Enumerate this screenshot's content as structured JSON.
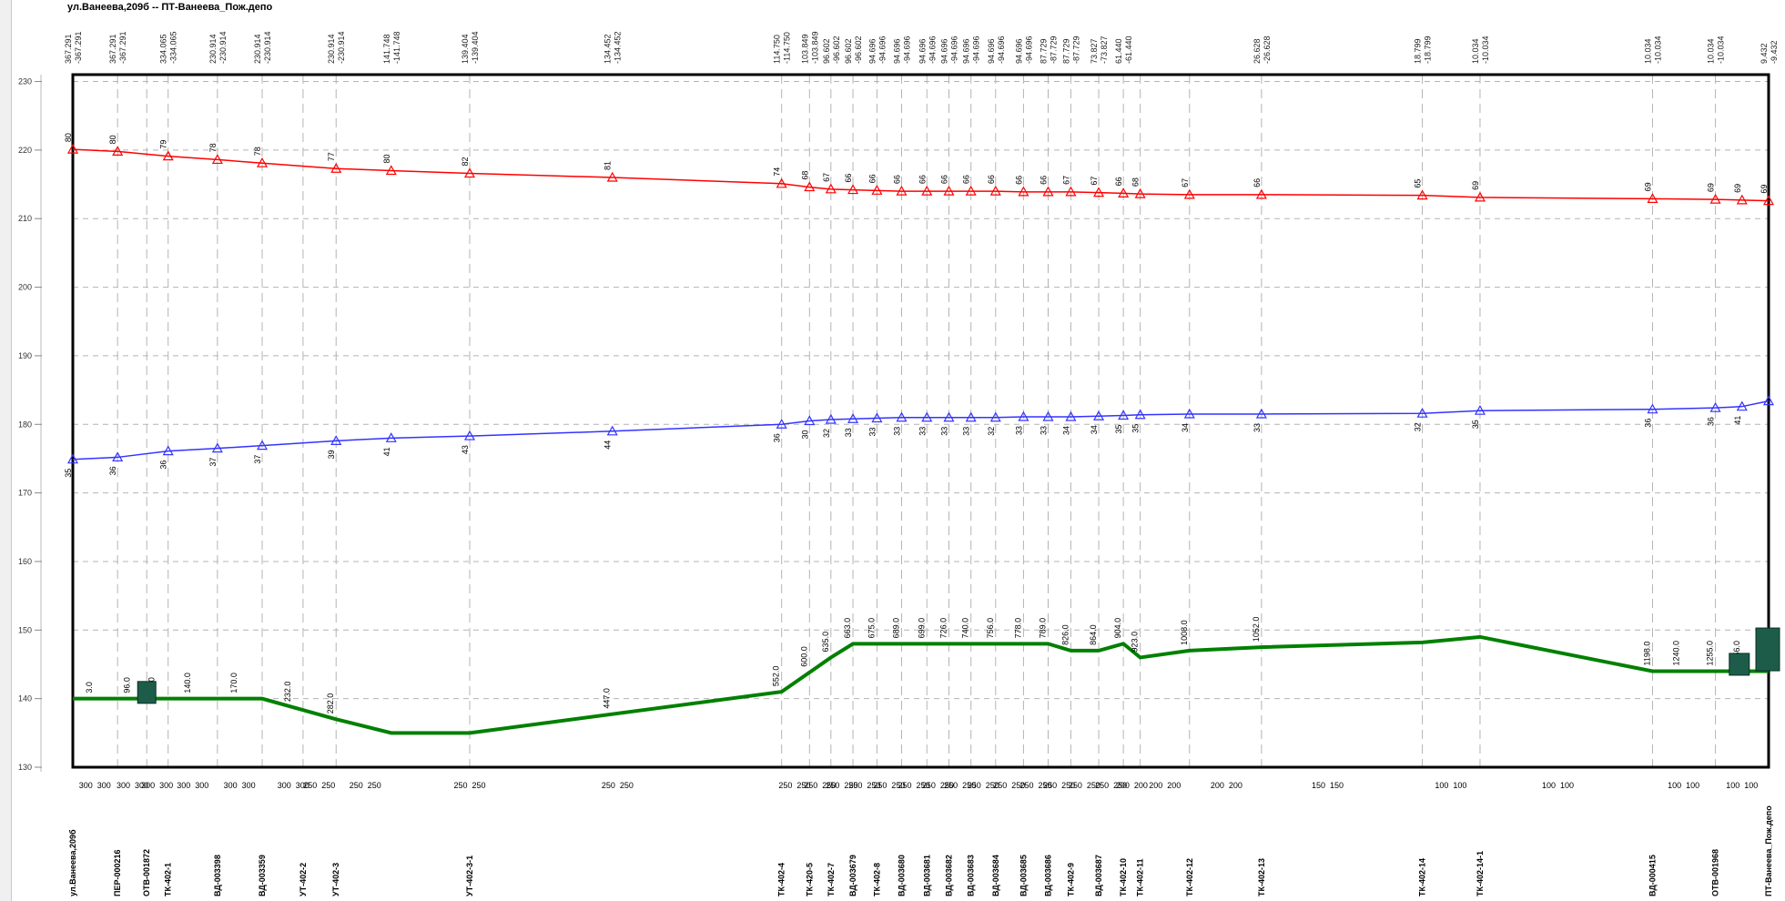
{
  "title": "ул.Ванеева,209б -- ПТ-Ванеева_Пож.депо",
  "colors": {
    "supply": "#ff0000",
    "return": "#3333ff",
    "ground": "#008000",
    "frame": "#000000",
    "grid": "#b4b4b4",
    "block": "#1e5c4a"
  },
  "chart_data": {
    "type": "line",
    "title": "ул.Ванеева,209б -- ПТ-Ванеева_Пож.депо",
    "ylim": [
      130,
      231
    ],
    "yticks": [
      130,
      140,
      150,
      160,
      170,
      180,
      190,
      200,
      210,
      220,
      230
    ],
    "grid": true,
    "x": [
      0,
      69,
      147,
      223,
      292,
      406,
      491,
      612,
      832,
      1093,
      1136,
      1169,
      1203,
      1240,
      1278,
      1317,
      1351,
      1385,
      1423,
      1466,
      1504,
      1539,
      1582,
      1620,
      1646,
      1722,
      1833,
      2081,
      2170,
      2436,
      2533,
      2574,
      2615
    ],
    "nodes": [
      "ул.Ванеева,209б",
      "ПЕР-000216",
      "ОТВ-001872",
      "ТК-402-1",
      "ВД-003398",
      "ВД-003359",
      "УТ-402-2",
      "УТ-402-3",
      "УТ-402-3-1",
      "ТК-402-4",
      "ТК-420-5",
      "ТК-402-7",
      "ВД-003679",
      "ТК-402-8",
      "ВД-003680",
      "ВД-003681",
      "ВД-003682",
      "ВД-003683",
      "ВД-003684",
      "ВД-003685",
      "ВД-003686",
      "ТК-402-9",
      "ВД-003687",
      "ТК-402-10",
      "ТК-402-11",
      "ТК-402-12",
      "ТК-402-13",
      "ТК-402-14",
      "ТК-402-14-1",
      "ВД-000415",
      "ОТВ-001968",
      "ПТ-Ванеева_Пож.депо"
    ],
    "node_x": [
      0,
      69,
      114,
      147,
      223,
      292,
      355,
      406,
      612,
      1093,
      1136,
      1169,
      1203,
      1240,
      1278,
      1317,
      1351,
      1385,
      1423,
      1466,
      1504,
      1539,
      1582,
      1620,
      1646,
      1722,
      1833,
      2081,
      2170,
      2436,
      2533,
      2615
    ],
    "top_labels": [
      [
        "367.291",
        "-367.291"
      ],
      [
        "367.291",
        "-367.291"
      ],
      [
        "334.065",
        "-334.065"
      ],
      [
        "230.914",
        "-230.914"
      ],
      [
        "230.914",
        "-230.914"
      ],
      [
        "230.914",
        "-230.914"
      ],
      [
        "141.748",
        "-141.748"
      ],
      [
        "139.404",
        "-139.404"
      ],
      [
        "134.452",
        "-134.452"
      ],
      [
        "114.750",
        "-114.750"
      ],
      [
        "103.849",
        "-103.849"
      ],
      [
        "96.602",
        "-96.602"
      ],
      [
        "96.602",
        "-96.602"
      ],
      [
        "94.696",
        "-94.696"
      ],
      [
        "94.696",
        "-94.696"
      ],
      [
        "94.696",
        "-94.696"
      ],
      [
        "94.696",
        "-94.696"
      ],
      [
        "94.696",
        "-94.696"
      ],
      [
        "94.696",
        "-94.696"
      ],
      [
        "94.696",
        "-94.696"
      ],
      [
        "87.729",
        "-87.729"
      ],
      [
        "87.729",
        "-87.729"
      ],
      [
        "73.827",
        "-73.827"
      ],
      [
        "61.440",
        "-61.440"
      ],
      [
        "26.628",
        "-26.628"
      ],
      [
        "18.799",
        "-18.799"
      ],
      [
        "10.034",
        "-10.034"
      ],
      [
        "10.034",
        "-10.034"
      ],
      [
        "10.034",
        "-10.034"
      ],
      [
        "9.432",
        "-9.432"
      ]
    ],
    "top_x": [
      0,
      69,
      147,
      223,
      292,
      406,
      491,
      612,
      832,
      1093,
      1136,
      1169,
      1203,
      1240,
      1278,
      1317,
      1351,
      1385,
      1423,
      1466,
      1504,
      1539,
      1582,
      1620,
      1833,
      2081,
      2170,
      2436,
      2533,
      2615
    ],
    "diameters": [
      "300 300",
      "300 300",
      "300 300",
      "300 300",
      "300 300",
      "300 300",
      "250 250",
      "250 250",
      "250 250",
      "250 250",
      "250 250",
      "250 250",
      "250 250",
      "250 250",
      "250 250",
      "250 250",
      "250 250",
      "250 250",
      "250 250",
      "250 250",
      "250 250",
      "250 250",
      "250 250",
      "250 250",
      "200 200",
      "200 200",
      "200 200",
      "150 150",
      "100 100",
      "100 100",
      "100 100",
      "100 100"
    ],
    "diam_x": [
      34,
      92,
      130,
      185,
      257,
      340,
      380,
      451,
      612,
      840,
      1113,
      1152,
      1186,
      1221,
      1259,
      1297,
      1334,
      1368,
      1404,
      1444,
      1485,
      1521,
      1560,
      1601,
      1633,
      1684,
      1779,
      1935,
      2125,
      2290,
      2484,
      2574
    ],
    "series": [
      {
        "name": "supply",
        "values": [
          220.1,
          219.8,
          219.1,
          218.6,
          218.1,
          217.3,
          217.0,
          216.6,
          216.0,
          215.1,
          214.6,
          214.3,
          214.2,
          214.1,
          214.0,
          214.0,
          214.0,
          214.0,
          214.0,
          213.9,
          213.9,
          213.9,
          213.8,
          213.7,
          213.6,
          213.5,
          213.5,
          213.4,
          213.1,
          212.9,
          212.8,
          212.7,
          212.6
        ],
        "labels": [
          "80",
          "80",
          "79",
          "78",
          "78",
          "77",
          "80",
          "82",
          "81",
          "74",
          "68",
          "67",
          "66",
          "66",
          "66",
          "66",
          "66",
          "66",
          "66",
          "66",
          "66",
          "67",
          "67",
          "66",
          "68",
          "67",
          "66",
          "65",
          "69",
          "69",
          "69",
          "69",
          "69"
        ]
      },
      {
        "name": "return",
        "values": [
          174.9,
          175.2,
          176.1,
          176.5,
          176.9,
          177.6,
          178.0,
          178.3,
          179.0,
          180.0,
          180.5,
          180.7,
          180.8,
          180.9,
          181.0,
          181.0,
          181.0,
          181.0,
          181.0,
          181.1,
          181.1,
          181.1,
          181.2,
          181.3,
          181.4,
          181.5,
          181.5,
          181.6,
          182.0,
          182.2,
          182.4,
          182.6,
          183.4
        ],
        "labels": [
          "35",
          "36",
          "36",
          "37",
          "37",
          "39",
          "41",
          "43",
          "44",
          "36",
          "30",
          "32",
          "33",
          "33",
          "33",
          "33",
          "33",
          "33",
          "32",
          "33",
          "33",
          "34",
          "34",
          "35",
          "35",
          "34",
          "33",
          "32",
          "35",
          "36",
          "36",
          "41",
          ""
        ]
      },
      {
        "name": "ground",
        "x": [
          0,
          292,
          406,
          491,
          612,
          1093,
          1169,
          1203,
          1240,
          1278,
          1317,
          1351,
          1385,
          1423,
          1466,
          1504,
          1539,
          1582,
          1620,
          1646,
          1722,
          1833,
          2081,
          2170,
          2436,
          2533,
          2574,
          2615
        ],
        "values": [
          140,
          140,
          137,
          135,
          135,
          141,
          146,
          148,
          148,
          148,
          148,
          148,
          148,
          148,
          148,
          148,
          147,
          147,
          148,
          146,
          147,
          147.5,
          148.2,
          149,
          144,
          144,
          144,
          144
        ],
        "labels": [
          "3.0",
          "96.0",
          "92.0",
          "140.0",
          "170.0",
          "232.0",
          "282.0",
          "447.0",
          "552.0",
          "600.0",
          "635.0",
          "663.0",
          "675.0",
          "689.0",
          "699.0",
          "726.0",
          "740.0",
          "756.0",
          "778.0",
          "789.0",
          "826.0",
          "864.0",
          "904.0",
          "923.0",
          "1008.0",
          "1052.0",
          "1198.0",
          "1240.0",
          "1255.0",
          "1256.0"
        ],
        "label_x": [
          34,
          92,
          130,
          185,
          257,
          340,
          406,
          832,
          1093,
          1136,
          1169,
          1203,
          1240,
          1278,
          1317,
          1351,
          1385,
          1423,
          1466,
          1504,
          1539,
          1582,
          1620,
          1646,
          1722,
          1833,
          2436,
          2481,
          2533,
          2574
        ]
      }
    ]
  }
}
